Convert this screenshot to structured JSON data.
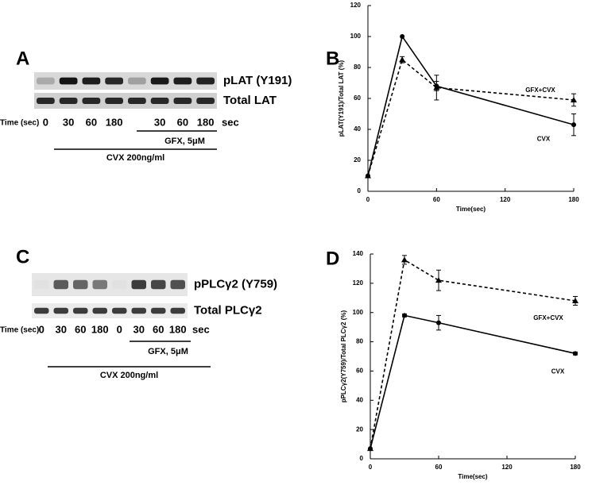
{
  "blots": [
    {
      "label": "A",
      "bands": [
        "pLAT (Y191)",
        "Total LAT"
      ],
      "time_label": "Time (sec)",
      "times": [
        "0",
        "30",
        "60",
        "180",
        "30",
        "60",
        "180"
      ],
      "unit": "sec",
      "inhibitor": "GFX, 5μM",
      "agonist": "CVX 200ng/ml"
    },
    {
      "label": "C",
      "bands": [
        "pPLCγ2 (Y759)",
        "Total PLCγ2"
      ],
      "time_label": "Time (sec)",
      "times": [
        "0",
        "30",
        "60",
        "180",
        "0",
        "30",
        "60",
        "180"
      ],
      "unit": "sec",
      "inhibitor": "GFX, 5μM",
      "agonist": "CVX 200ng/ml"
    }
  ],
  "chart_data": [
    {
      "type": "line",
      "panel_label": "B",
      "x_label": "Time(sec)",
      "y_label": "pLAT(Y191)/Total LAT (%)",
      "x": [
        0,
        30,
        60,
        180
      ],
      "xlim": [
        0,
        180
      ],
      "xticks": [
        0,
        60,
        120,
        180
      ],
      "ylim": [
        0,
        120
      ],
      "yticks": [
        0,
        20,
        40,
        60,
        80,
        100,
        120
      ],
      "series": [
        {
          "name": "GFX+CVX",
          "color": "#000000",
          "line_style": "dashed",
          "marker": "triangle",
          "values": [
            10,
            85,
            67,
            59
          ],
          "errors": [
            0,
            2,
            8,
            4
          ]
        },
        {
          "name": "CVX",
          "color": "#000000",
          "line_style": "solid",
          "marker": "circle",
          "values": [
            10,
            100,
            68,
            43
          ],
          "errors": [
            0,
            0,
            3,
            7
          ]
        }
      ]
    },
    {
      "type": "line",
      "panel_label": "D",
      "x_label": "Time(sec)",
      "y_label": "pPLCγ2(Y759)/Total PLCγ2 (%)",
      "x": [
        0,
        30,
        60,
        180
      ],
      "xlim": [
        0,
        180
      ],
      "xticks": [
        0,
        60,
        120,
        180
      ],
      "ylim": [
        0,
        140
      ],
      "yticks": [
        0,
        20,
        40,
        60,
        80,
        100,
        120,
        140
      ],
      "series": [
        {
          "name": "GFX+CVX",
          "color": "#000000",
          "line_style": "dashed",
          "marker": "triangle",
          "values": [
            7,
            136,
            122,
            108
          ],
          "errors": [
            0,
            3,
            7,
            3
          ]
        },
        {
          "name": "CVX",
          "color": "#000000",
          "line_style": "solid",
          "marker": "circle",
          "values": [
            7,
            98,
            93,
            72
          ],
          "errors": [
            0,
            1,
            5,
            1
          ]
        }
      ]
    }
  ]
}
